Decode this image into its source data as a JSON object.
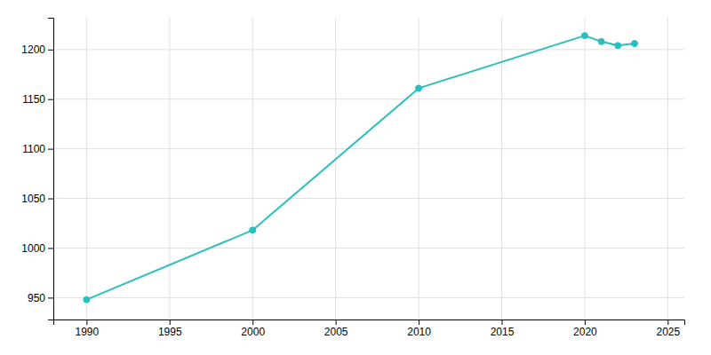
{
  "chart_data": {
    "type": "line",
    "x": [
      1990,
      2000,
      2010,
      2020,
      2021,
      2022,
      2023
    ],
    "values": [
      948,
      1018,
      1161,
      1214,
      1208,
      1204,
      1206
    ],
    "color": "#2abfbf",
    "marker": "circle",
    "xlim": [
      1988,
      2026
    ],
    "ylim": [
      928,
      1232
    ],
    "xticks": [
      1990,
      1995,
      2000,
      2005,
      2010,
      2015,
      2020,
      2025
    ],
    "yticks": [
      950,
      1000,
      1050,
      1100,
      1150,
      1200
    ],
    "grid": true
  }
}
